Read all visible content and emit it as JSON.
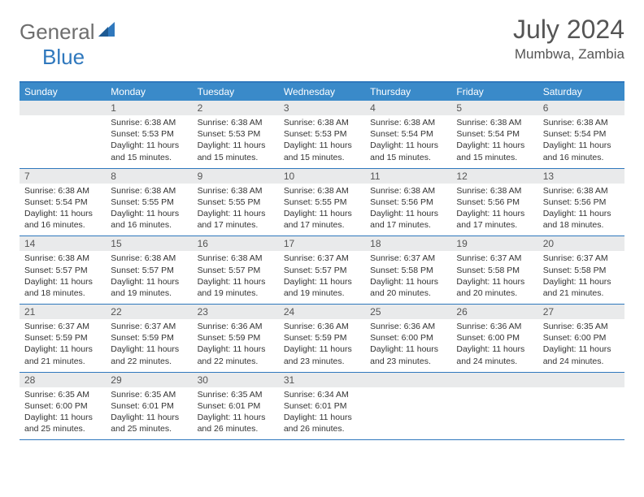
{
  "logo": {
    "general": "General",
    "blue": "Blue"
  },
  "header": {
    "month": "July 2024",
    "location": "Mumbwa, Zambia"
  },
  "colors": {
    "brand_blue": "#2f78bd",
    "header_bg": "#3a8ac9",
    "daynum_bg": "#e9eaeb",
    "text_gray": "#555555",
    "body_text": "#333333",
    "logo_gray": "#6e6e6e"
  },
  "dayHeaders": [
    "Sunday",
    "Monday",
    "Tuesday",
    "Wednesday",
    "Thursday",
    "Friday",
    "Saturday"
  ],
  "weeks": [
    [
      {
        "empty": true
      },
      {
        "day": "1",
        "sunrise": "Sunrise: 6:38 AM",
        "sunset": "Sunset: 5:53 PM",
        "daylight1": "Daylight: 11 hours",
        "daylight2": "and 15 minutes."
      },
      {
        "day": "2",
        "sunrise": "Sunrise: 6:38 AM",
        "sunset": "Sunset: 5:53 PM",
        "daylight1": "Daylight: 11 hours",
        "daylight2": "and 15 minutes."
      },
      {
        "day": "3",
        "sunrise": "Sunrise: 6:38 AM",
        "sunset": "Sunset: 5:53 PM",
        "daylight1": "Daylight: 11 hours",
        "daylight2": "and 15 minutes."
      },
      {
        "day": "4",
        "sunrise": "Sunrise: 6:38 AM",
        "sunset": "Sunset: 5:54 PM",
        "daylight1": "Daylight: 11 hours",
        "daylight2": "and 15 minutes."
      },
      {
        "day": "5",
        "sunrise": "Sunrise: 6:38 AM",
        "sunset": "Sunset: 5:54 PM",
        "daylight1": "Daylight: 11 hours",
        "daylight2": "and 15 minutes."
      },
      {
        "day": "6",
        "sunrise": "Sunrise: 6:38 AM",
        "sunset": "Sunset: 5:54 PM",
        "daylight1": "Daylight: 11 hours",
        "daylight2": "and 16 minutes."
      }
    ],
    [
      {
        "day": "7",
        "sunrise": "Sunrise: 6:38 AM",
        "sunset": "Sunset: 5:54 PM",
        "daylight1": "Daylight: 11 hours",
        "daylight2": "and 16 minutes."
      },
      {
        "day": "8",
        "sunrise": "Sunrise: 6:38 AM",
        "sunset": "Sunset: 5:55 PM",
        "daylight1": "Daylight: 11 hours",
        "daylight2": "and 16 minutes."
      },
      {
        "day": "9",
        "sunrise": "Sunrise: 6:38 AM",
        "sunset": "Sunset: 5:55 PM",
        "daylight1": "Daylight: 11 hours",
        "daylight2": "and 17 minutes."
      },
      {
        "day": "10",
        "sunrise": "Sunrise: 6:38 AM",
        "sunset": "Sunset: 5:55 PM",
        "daylight1": "Daylight: 11 hours",
        "daylight2": "and 17 minutes."
      },
      {
        "day": "11",
        "sunrise": "Sunrise: 6:38 AM",
        "sunset": "Sunset: 5:56 PM",
        "daylight1": "Daylight: 11 hours",
        "daylight2": "and 17 minutes."
      },
      {
        "day": "12",
        "sunrise": "Sunrise: 6:38 AM",
        "sunset": "Sunset: 5:56 PM",
        "daylight1": "Daylight: 11 hours",
        "daylight2": "and 17 minutes."
      },
      {
        "day": "13",
        "sunrise": "Sunrise: 6:38 AM",
        "sunset": "Sunset: 5:56 PM",
        "daylight1": "Daylight: 11 hours",
        "daylight2": "and 18 minutes."
      }
    ],
    [
      {
        "day": "14",
        "sunrise": "Sunrise: 6:38 AM",
        "sunset": "Sunset: 5:57 PM",
        "daylight1": "Daylight: 11 hours",
        "daylight2": "and 18 minutes."
      },
      {
        "day": "15",
        "sunrise": "Sunrise: 6:38 AM",
        "sunset": "Sunset: 5:57 PM",
        "daylight1": "Daylight: 11 hours",
        "daylight2": "and 19 minutes."
      },
      {
        "day": "16",
        "sunrise": "Sunrise: 6:38 AM",
        "sunset": "Sunset: 5:57 PM",
        "daylight1": "Daylight: 11 hours",
        "daylight2": "and 19 minutes."
      },
      {
        "day": "17",
        "sunrise": "Sunrise: 6:37 AM",
        "sunset": "Sunset: 5:57 PM",
        "daylight1": "Daylight: 11 hours",
        "daylight2": "and 19 minutes."
      },
      {
        "day": "18",
        "sunrise": "Sunrise: 6:37 AM",
        "sunset": "Sunset: 5:58 PM",
        "daylight1": "Daylight: 11 hours",
        "daylight2": "and 20 minutes."
      },
      {
        "day": "19",
        "sunrise": "Sunrise: 6:37 AM",
        "sunset": "Sunset: 5:58 PM",
        "daylight1": "Daylight: 11 hours",
        "daylight2": "and 20 minutes."
      },
      {
        "day": "20",
        "sunrise": "Sunrise: 6:37 AM",
        "sunset": "Sunset: 5:58 PM",
        "daylight1": "Daylight: 11 hours",
        "daylight2": "and 21 minutes."
      }
    ],
    [
      {
        "day": "21",
        "sunrise": "Sunrise: 6:37 AM",
        "sunset": "Sunset: 5:59 PM",
        "daylight1": "Daylight: 11 hours",
        "daylight2": "and 21 minutes."
      },
      {
        "day": "22",
        "sunrise": "Sunrise: 6:37 AM",
        "sunset": "Sunset: 5:59 PM",
        "daylight1": "Daylight: 11 hours",
        "daylight2": "and 22 minutes."
      },
      {
        "day": "23",
        "sunrise": "Sunrise: 6:36 AM",
        "sunset": "Sunset: 5:59 PM",
        "daylight1": "Daylight: 11 hours",
        "daylight2": "and 22 minutes."
      },
      {
        "day": "24",
        "sunrise": "Sunrise: 6:36 AM",
        "sunset": "Sunset: 5:59 PM",
        "daylight1": "Daylight: 11 hours",
        "daylight2": "and 23 minutes."
      },
      {
        "day": "25",
        "sunrise": "Sunrise: 6:36 AM",
        "sunset": "Sunset: 6:00 PM",
        "daylight1": "Daylight: 11 hours",
        "daylight2": "and 23 minutes."
      },
      {
        "day": "26",
        "sunrise": "Sunrise: 6:36 AM",
        "sunset": "Sunset: 6:00 PM",
        "daylight1": "Daylight: 11 hours",
        "daylight2": "and 24 minutes."
      },
      {
        "day": "27",
        "sunrise": "Sunrise: 6:35 AM",
        "sunset": "Sunset: 6:00 PM",
        "daylight1": "Daylight: 11 hours",
        "daylight2": "and 24 minutes."
      }
    ],
    [
      {
        "day": "28",
        "sunrise": "Sunrise: 6:35 AM",
        "sunset": "Sunset: 6:00 PM",
        "daylight1": "Daylight: 11 hours",
        "daylight2": "and 25 minutes."
      },
      {
        "day": "29",
        "sunrise": "Sunrise: 6:35 AM",
        "sunset": "Sunset: 6:01 PM",
        "daylight1": "Daylight: 11 hours",
        "daylight2": "and 25 minutes."
      },
      {
        "day": "30",
        "sunrise": "Sunrise: 6:35 AM",
        "sunset": "Sunset: 6:01 PM",
        "daylight1": "Daylight: 11 hours",
        "daylight2": "and 26 minutes."
      },
      {
        "day": "31",
        "sunrise": "Sunrise: 6:34 AM",
        "sunset": "Sunset: 6:01 PM",
        "daylight1": "Daylight: 11 hours",
        "daylight2": "and 26 minutes."
      },
      {
        "empty": true
      },
      {
        "empty": true
      },
      {
        "empty": true
      }
    ]
  ]
}
